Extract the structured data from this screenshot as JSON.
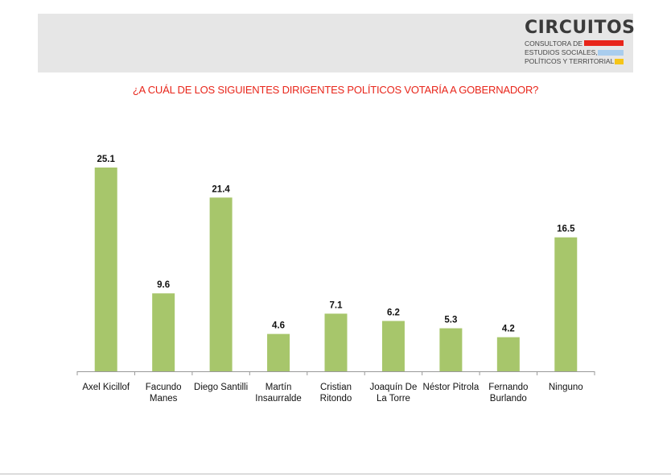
{
  "header": {
    "logo": {
      "title": "CIRCUITOS",
      "line1": "CONSULTORA DE",
      "line2": "ESTUDIOS SOCIALES,",
      "line3": "POLÍTICOS Y TERRITORIALES",
      "colors": {
        "red": "#e8251a",
        "blue": "#a9cdee",
        "yellow": "#f5c518"
      }
    }
  },
  "chart_data": {
    "type": "bar",
    "title": "¿A CUÁL DE LOS SIGUIENTES DIRIGENTES POLÍTICOS VOTARÍA A GOBERNADOR?",
    "categories": [
      [
        "Axel Kicillof"
      ],
      [
        "Facundo",
        "Manes"
      ],
      [
        "Diego Santilli"
      ],
      [
        "Martín",
        "Insaurralde"
      ],
      [
        "Cristian",
        "Ritondo"
      ],
      [
        "Joaquín De",
        "La Torre"
      ],
      [
        "Néstor Pitrola"
      ],
      [
        "Fernando",
        "Burlando"
      ],
      [
        "Ninguno"
      ]
    ],
    "values": [
      25.1,
      9.6,
      21.4,
      4.6,
      7.1,
      6.2,
      5.3,
      4.2,
      16.5
    ],
    "value_labels": [
      "25.1",
      "9.6",
      "21.4",
      "4.6",
      "7.1",
      "6.2",
      "5.3",
      "4.2",
      "16.5"
    ],
    "ylim": [
      0,
      25.1
    ],
    "grid": false,
    "legend": "none",
    "bar_color": "#a7c66b"
  }
}
